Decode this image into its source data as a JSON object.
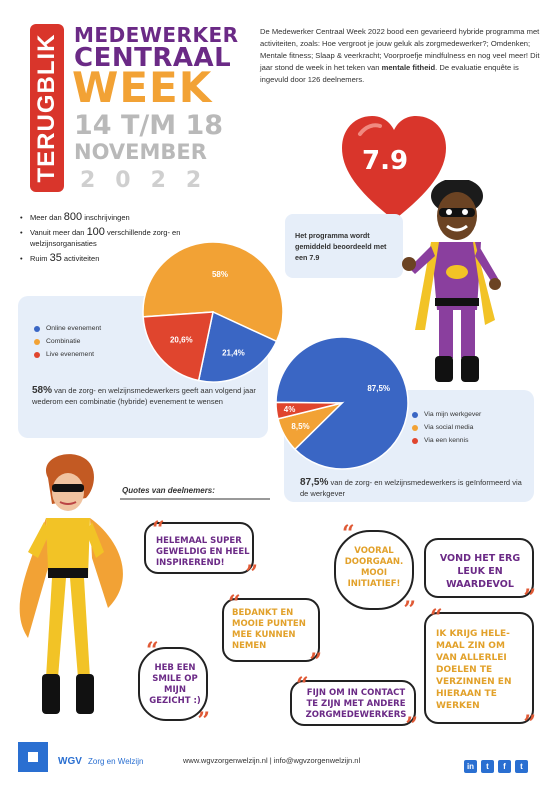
{
  "header": {
    "badge": "TERUGBLIK",
    "title_line1": "MEDEWERKER",
    "title_line2": "CENTRAAL",
    "title_line3": "WEEK",
    "date_line1": "14 T/M 18",
    "date_line2": "NOVEMBER",
    "year": "2022"
  },
  "intro": {
    "part1": "De Medewerker Centraal Week 2022 bood een gevarieerd hybride programma met activiteiten, zoals: Hoe vergroot je jouw geluk als zorgmedewerker?; Omdenken; Mentale fitness; Slaap & veerkracht; Voorproefje mindfulness en nog veel meer! Dit jaar stond de week in het teken van ",
    "bold": "mentale fitheid",
    "part2": ". De evaluatie enquête is ingevuld door 126 deelnemers."
  },
  "bullets": [
    {
      "pre": "Meer dan ",
      "num": "800",
      "post": " inschrijvingen"
    },
    {
      "pre": "Vanuit meer dan ",
      "num": "100",
      "post": " verschillende zorg- en welzijnsorganisaties"
    },
    {
      "pre": "Ruim ",
      "num": "35",
      "post": " activiteiten"
    }
  ],
  "heart": {
    "score": "7.9",
    "caption": "Het programma wordt gemiddeld beoordeeld met een 7.9"
  },
  "chart1": {
    "legend": [
      "Online evenement",
      "Combinatie",
      "Live evenement"
    ],
    "stat_big": "58%",
    "stat_text": " van de zorg- en welzijnsmedewerkers geeft aan volgend jaar wederom een combinatie (hybride) evenement te wensen"
  },
  "chart2": {
    "legend": [
      "Via mijn werkgever",
      "Via social media",
      "Via een kennis"
    ],
    "stat_big": "87,5%",
    "stat_text": " van de zorg- en welzijnsmedewerkers is geïnformeerd via de werkgever"
  },
  "chart_data": [
    {
      "type": "pie",
      "labels": [
        "Combinatie",
        "Online evenement",
        "Live evenement"
      ],
      "values": [
        58,
        21.4,
        20.6
      ],
      "data_labels": [
        "58%",
        "21,4%",
        "20,6%"
      ],
      "colors": [
        "#f2a235",
        "#3a66c4",
        "#e0452e"
      ],
      "legend": "left"
    },
    {
      "type": "pie",
      "labels": [
        "Via mijn werkgever",
        "Via social media",
        "Via een kennis"
      ],
      "values": [
        87.5,
        8.5,
        4
      ],
      "data_labels": [
        "87,5%",
        "8,5%",
        "4%"
      ],
      "colors": [
        "#3a66c4",
        "#f2a235",
        "#e0452e"
      ],
      "legend": "right"
    }
  ],
  "quotes": {
    "title": "Quotes van deelnemers:",
    "q1": "HELEMAAL SUPER GEWELDIG EN HEEL INSPIREREND!",
    "q2": "BEDANKT EN MOOIE PUNTEN MEE KUNNEN NEMEN",
    "q3": "HEB EEN SMILE OP MIJN GEZICHT :)",
    "q4": "VOORAL DOORGAAN. MOOI INITIATIEF!",
    "q5": "FIJN OM IN CONTACT TE ZIJN MET ANDERE ZORGMEDEWERKERS",
    "q6": "VOND HET ERG LEUK EN WAARDEVOL",
    "q7": "IK KRIJG HELE-MAAL ZIN OM VAN ALLERLEI DOELEN TE VERZINNEN EN HIERAAN TE WERKEN",
    "open_mark": "“",
    "close_mark": "”"
  },
  "footer": {
    "brand": "WGV",
    "brand_sub": "Zorg en Welzijn",
    "url": "www.wgvzorgenwelzijn.nl | info@wgvzorgenwelzijn.nl",
    "social": [
      "in",
      "t",
      "f",
      "t"
    ]
  },
  "colors": {
    "purple": "#6b2a86",
    "orange": "#f2a235",
    "red": "#d9352b",
    "blue": "#3a66c4",
    "panel": "#e6eef9",
    "quote_orange": "#e2a12a",
    "quote_purple": "#6b2a86"
  }
}
